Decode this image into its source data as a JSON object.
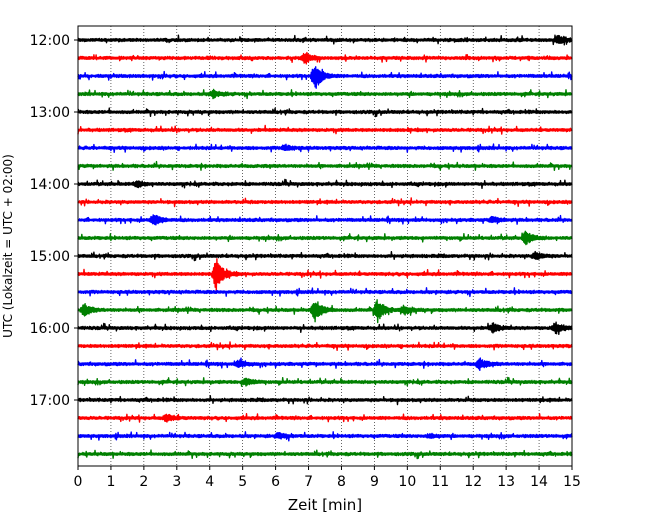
{
  "chart_data": {
    "type": "line",
    "title": "",
    "xlabel": "Zeit  [min]",
    "ylabel": "UTC (Lokalzeit = UTC + 02:00)",
    "xlim": [
      0,
      15
    ],
    "x_ticks": [
      0,
      1,
      2,
      3,
      4,
      5,
      6,
      7,
      8,
      9,
      10,
      11,
      12,
      13,
      14,
      15
    ],
    "x_tick_labels": [
      "0",
      "1",
      "2",
      "3",
      "4",
      "5",
      "6",
      "7",
      "8",
      "9",
      "10",
      "11",
      "12",
      "13",
      "14",
      "15"
    ],
    "y_ticks": [
      "12:00",
      "13:00",
      "14:00",
      "15:00",
      "16:00",
      "17:00"
    ],
    "trace_interval_min": 15,
    "x_grid": true,
    "line_colors": [
      "#000000",
      "#ff0000",
      "#0000ff",
      "#008000"
    ],
    "traces": [
      {
        "start": "12:00",
        "color": "#000000",
        "events": [
          {
            "t": 14.6,
            "amp": 0.25
          }
        ]
      },
      {
        "start": "12:15",
        "color": "#ff0000",
        "events": [
          {
            "t": 6.9,
            "amp": 0.3
          }
        ]
      },
      {
        "start": "12:30",
        "color": "#0000ff",
        "events": [
          {
            "t": 7.2,
            "amp": 0.75
          }
        ]
      },
      {
        "start": "12:45",
        "color": "#008000",
        "events": [
          {
            "t": 4.1,
            "amp": 0.2
          }
        ]
      },
      {
        "start": "13:00",
        "color": "#000000",
        "events": []
      },
      {
        "start": "13:15",
        "color": "#ff0000",
        "events": []
      },
      {
        "start": "13:30",
        "color": "#0000ff",
        "events": [
          {
            "t": 6.3,
            "amp": 0.15
          }
        ]
      },
      {
        "start": "13:45",
        "color": "#008000",
        "events": []
      },
      {
        "start": "14:00",
        "color": "#000000",
        "events": [
          {
            "t": 1.8,
            "amp": 0.15
          }
        ]
      },
      {
        "start": "14:15",
        "color": "#ff0000",
        "events": []
      },
      {
        "start": "14:30",
        "color": "#0000ff",
        "events": [
          {
            "t": 2.3,
            "amp": 0.3
          },
          {
            "t": 12.6,
            "amp": 0.15
          }
        ]
      },
      {
        "start": "14:45",
        "color": "#008000",
        "events": [
          {
            "t": 13.6,
            "amp": 0.35
          }
        ]
      },
      {
        "start": "15:00",
        "color": "#000000",
        "events": [
          {
            "t": 13.9,
            "amp": 0.2
          }
        ]
      },
      {
        "start": "15:15",
        "color": "#ff0000",
        "events": [
          {
            "t": 4.2,
            "amp": 0.9
          }
        ]
      },
      {
        "start": "15:30",
        "color": "#0000ff",
        "events": []
      },
      {
        "start": "15:45",
        "color": "#008000",
        "events": [
          {
            "t": 0.2,
            "amp": 0.3
          },
          {
            "t": 7.2,
            "amp": 0.6
          },
          {
            "t": 9.1,
            "amp": 0.6
          },
          {
            "t": 9.9,
            "amp": 0.25
          }
        ]
      },
      {
        "start": "16:00",
        "color": "#000000",
        "events": [
          {
            "t": 12.6,
            "amp": 0.25
          },
          {
            "t": 14.5,
            "amp": 0.3
          }
        ]
      },
      {
        "start": "16:15",
        "color": "#ff0000",
        "events": []
      },
      {
        "start": "16:30",
        "color": "#0000ff",
        "events": [
          {
            "t": 4.9,
            "amp": 0.2
          },
          {
            "t": 12.2,
            "amp": 0.3
          }
        ]
      },
      {
        "start": "16:45",
        "color": "#008000",
        "events": [
          {
            "t": 5.1,
            "amp": 0.2
          }
        ]
      },
      {
        "start": "17:00",
        "color": "#000000",
        "events": []
      },
      {
        "start": "17:15",
        "color": "#ff0000",
        "events": [
          {
            "t": 2.7,
            "amp": 0.2
          }
        ]
      },
      {
        "start": "17:30",
        "color": "#0000ff",
        "events": [
          {
            "t": 6.1,
            "amp": 0.15
          },
          {
            "t": 10.7,
            "amp": 0.1
          }
        ]
      },
      {
        "start": "17:45",
        "color": "#008000",
        "events": []
      }
    ]
  }
}
